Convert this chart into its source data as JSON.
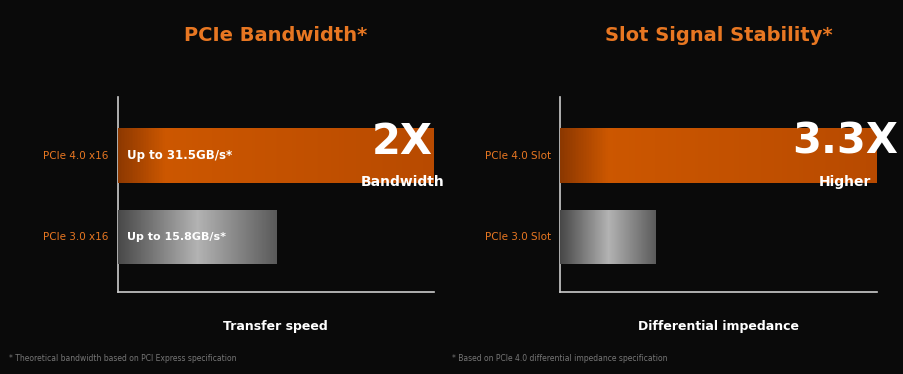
{
  "background_color": "#0a0a0a",
  "chart1": {
    "title": "PCIe Bandwidth*",
    "title_color": "#e87722",
    "bars": [
      {
        "label": "PCIe 4.0 x16",
        "value": 1.0,
        "color_type": "orange",
        "text": "Up to 31.5GB/s*"
      },
      {
        "label": "PCIe 3.0 x16",
        "value": 0.503,
        "color_type": "gray",
        "text": "Up to 15.8GB/s*"
      }
    ],
    "big_text": "2X",
    "sub_text": "Bandwidth",
    "xlabel": "Transfer speed",
    "footnote": "* Theoretical bandwidth based on PCI Express specification"
  },
  "chart2": {
    "title": "Slot Signal Stability*",
    "title_color": "#e87722",
    "bars": [
      {
        "label": "PCIe 4.0 Slot",
        "value": 1.0,
        "color_type": "orange",
        "text": ""
      },
      {
        "label": "PCIe 3.0 Slot",
        "value": 0.303,
        "color_type": "gray",
        "text": ""
      }
    ],
    "big_text": "3.3X",
    "sub_text": "Higher",
    "xlabel": "Differential impedance",
    "footnote": "* Based on PCIe 4.0 differential impedance specification"
  },
  "label_color": "#e87722",
  "footnote_color": "#777777",
  "axis_color": "#cccccc",
  "white": "#ffffff"
}
